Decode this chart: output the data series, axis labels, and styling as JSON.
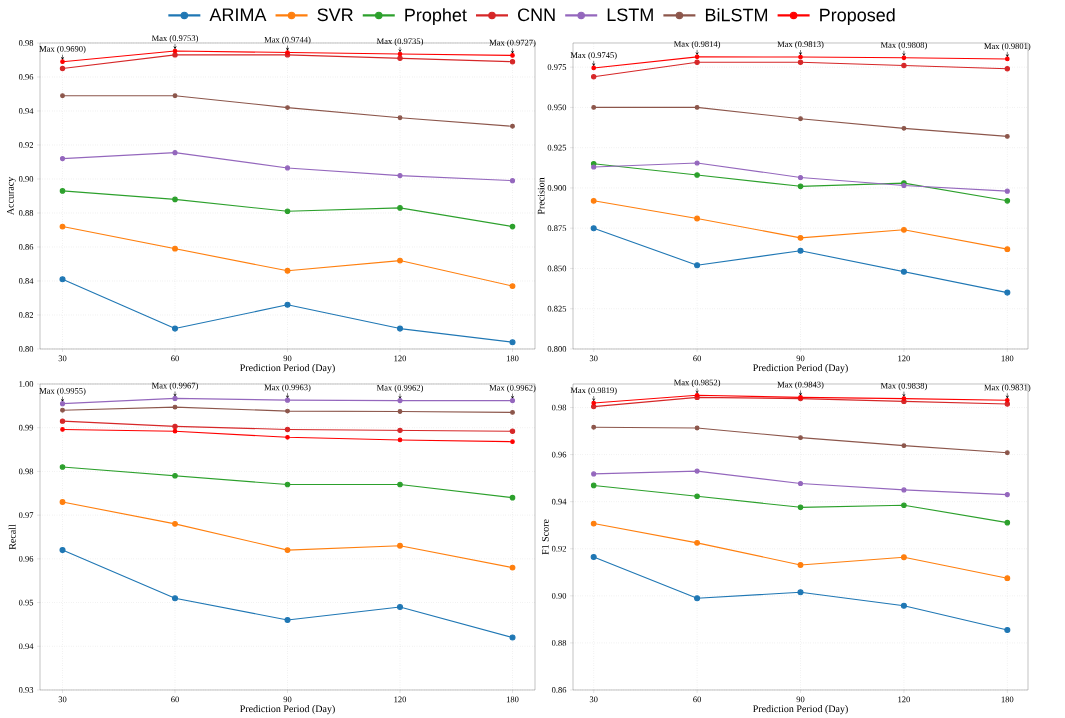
{
  "chart_data": [
    {
      "type": "line",
      "categories": [
        "30",
        "60",
        "90",
        "120",
        "180"
      ],
      "xlabel": "Prediction Period (Day)",
      "ylabel": "Accuracy",
      "ylim": [
        0.8,
        0.98
      ],
      "yticks": [
        {
          "value": 0.8,
          "label": "0.80"
        },
        0.82,
        0.84,
        0.86,
        0.88,
        {
          "value": 0.9,
          "label": "0.90"
        },
        0.92,
        0.94,
        0.96,
        0.98
      ],
      "grid": true,
      "marker": "circle",
      "line_style": "solid",
      "legend": "top",
      "series": [
        {
          "name": "ARIMA",
          "color": "#1f77b4",
          "values": [
            0.841,
            0.812,
            0.826,
            0.812,
            0.804
          ]
        },
        {
          "name": "SVR",
          "color": "#ff7f0e",
          "values": [
            0.872,
            0.859,
            0.846,
            0.852,
            0.837
          ]
        },
        {
          "name": "Prophet",
          "color": "#2ca02c",
          "values": [
            0.893,
            0.888,
            0.881,
            0.883,
            0.872
          ]
        },
        {
          "name": "CNN",
          "color": "#d62728",
          "values": [
            0.965,
            0.973,
            0.973,
            0.971,
            0.969
          ]
        },
        {
          "name": "LSTM",
          "color": "#9467bd",
          "values": [
            0.912,
            0.9155,
            0.9065,
            0.902,
            0.899
          ]
        },
        {
          "name": "BiLSTM",
          "color": "#8c564b",
          "values": [
            0.949,
            0.949,
            0.942,
            0.936,
            0.931
          ]
        },
        {
          "name": "Proposed",
          "color": "#ff0000",
          "values": [
            0.969,
            0.9753,
            0.9744,
            0.9735,
            0.9727
          ]
        }
      ],
      "annotations": [
        {
          "text": "Max (0.9690)",
          "x": "30",
          "y": 0.969
        },
        {
          "text": "Max (0.9753)",
          "x": "60",
          "y": 0.9753
        },
        {
          "text": "Max (0.9744)",
          "x": "90",
          "y": 0.9744
        },
        {
          "text": "Max (0.9735)",
          "x": "120",
          "y": 0.9735
        },
        {
          "text": "Max (0.9727)",
          "x": "180",
          "y": 0.9727
        }
      ]
    },
    {
      "type": "line",
      "categories": [
        "30",
        "60",
        "90",
        "120",
        "180"
      ],
      "xlabel": "Prediction Period (Day)",
      "ylabel": "Precision",
      "ylim": [
        0.8,
        0.99
      ],
      "yticks": [
        {
          "value": 0.8,
          "label": "0.800"
        },
        0.825,
        {
          "value": 0.85,
          "label": "0.850"
        },
        0.875,
        {
          "value": 0.9,
          "label": "0.900"
        },
        0.925,
        {
          "value": 0.95,
          "label": "0.950"
        },
        0.975
      ],
      "grid": true,
      "marker": "circle",
      "line_style": "solid",
      "series": [
        {
          "color": "#1f77b4",
          "values": [
            0.875,
            0.852,
            0.861,
            0.848,
            0.835
          ]
        },
        {
          "color": "#ff7f0e",
          "values": [
            0.892,
            0.881,
            0.869,
            0.874,
            0.862
          ]
        },
        {
          "color": "#2ca02c",
          "values": [
            0.915,
            0.908,
            0.901,
            0.903,
            0.892
          ]
        },
        {
          "color": "#d62728",
          "values": [
            0.969,
            0.978,
            0.978,
            0.976,
            0.974
          ]
        },
        {
          "color": "#9467bd",
          "values": [
            0.913,
            0.9155,
            0.9065,
            0.9015,
            0.898
          ]
        },
        {
          "color": "#8c564b",
          "values": [
            0.95,
            0.95,
            0.943,
            0.937,
            0.932
          ]
        },
        {
          "color": "#ff0000",
          "values": [
            0.9745,
            0.9814,
            0.9813,
            0.9808,
            0.9801
          ]
        }
      ],
      "annotations": [
        {
          "text": "Max (0.9745)",
          "x": "30",
          "y": 0.9745
        },
        {
          "text": "Max (0.9814)",
          "x": "60",
          "y": 0.9814
        },
        {
          "text": "Max (0.9813)",
          "x": "90",
          "y": 0.9813
        },
        {
          "text": "Max (0.9808)",
          "x": "120",
          "y": 0.9808
        },
        {
          "text": "Max (0.9801)",
          "x": "180",
          "y": 0.9801
        }
      ]
    },
    {
      "type": "line",
      "categories": [
        "30",
        "60",
        "90",
        "120",
        "180"
      ],
      "xlabel": "Prediction Period (Day)",
      "ylabel": "Recall",
      "ylim": [
        0.93,
        1.0
      ],
      "yticks": [
        0.93,
        0.94,
        0.95,
        0.96,
        0.97,
        0.98,
        0.99,
        {
          "value": 1.0,
          "label": "1.00"
        }
      ],
      "grid": true,
      "marker": "circle",
      "line_style": "solid",
      "series": [
        {
          "color": "#1f77b4",
          "values": [
            0.962,
            0.951,
            0.946,
            0.949,
            0.942
          ]
        },
        {
          "color": "#ff7f0e",
          "values": [
            0.973,
            0.968,
            0.962,
            0.963,
            0.958
          ]
        },
        {
          "color": "#2ca02c",
          "values": [
            0.981,
            0.979,
            0.977,
            0.977,
            0.974
          ]
        },
        {
          "color": "#d62728",
          "values": [
            0.9915,
            0.9903,
            0.9896,
            0.9894,
            0.9892
          ]
        },
        {
          "color": "#9467bd",
          "values": [
            0.9955,
            0.9967,
            0.9963,
            0.9962,
            0.9962
          ]
        },
        {
          "color": "#8c564b",
          "values": [
            0.994,
            0.9947,
            0.9938,
            0.9937,
            0.9935
          ]
        },
        {
          "color": "#ff0000",
          "values": [
            0.9896,
            0.9892,
            0.9878,
            0.9872,
            0.9868
          ]
        }
      ],
      "annotations": [
        {
          "text": "Max (0.9955)",
          "x": "30",
          "y": 0.9955
        },
        {
          "text": "Max (0.9967)",
          "x": "60",
          "y": 0.9967
        },
        {
          "text": "Max (0.9963)",
          "x": "90",
          "y": 0.9963
        },
        {
          "text": "Max (0.9962)",
          "x": "120",
          "y": 0.9962
        },
        {
          "text": "Max (0.9962)",
          "x": "180",
          "y": 0.9962
        }
      ]
    },
    {
      "type": "line",
      "categories": [
        "30",
        "60",
        "90",
        "120",
        "180"
      ],
      "xlabel": "Prediction Period (Day)",
      "ylabel": "F1 Score",
      "ylim": [
        0.86,
        0.99
      ],
      "yticks": [
        0.86,
        0.88,
        {
          "value": 0.9,
          "label": "0.90"
        },
        0.92,
        0.94,
        0.96,
        0.98
      ],
      "grid": true,
      "marker": "circle",
      "line_style": "solid",
      "series": [
        {
          "color": "#1f77b4",
          "values": [
            0.9165,
            0.899,
            0.9015,
            0.8958,
            0.8855
          ]
        },
        {
          "color": "#ff7f0e",
          "values": [
            0.9307,
            0.9225,
            0.9131,
            0.9164,
            0.9075
          ]
        },
        {
          "color": "#2ca02c",
          "values": [
            0.9469,
            0.9423,
            0.9376,
            0.9385,
            0.9311
          ]
        },
        {
          "color": "#d62728",
          "values": [
            0.9804,
            0.9843,
            0.9838,
            0.9826,
            0.9815
          ]
        },
        {
          "color": "#9467bd",
          "values": [
            0.9518,
            0.953,
            0.9477,
            0.945,
            0.943
          ]
        },
        {
          "color": "#8c564b",
          "values": [
            0.9716,
            0.9713,
            0.9672,
            0.9638,
            0.9608
          ]
        },
        {
          "color": "#ff0000",
          "values": [
            0.9819,
            0.9852,
            0.9843,
            0.9838,
            0.9831
          ]
        }
      ],
      "annotations": [
        {
          "text": "Max (0.9819)",
          "x": "30",
          "y": 0.9819
        },
        {
          "text": "Max (0.9852)",
          "x": "60",
          "y": 0.9852
        },
        {
          "text": "Max (0.9843)",
          "x": "90",
          "y": 0.9843
        },
        {
          "text": "Max (0.9838)",
          "x": "120",
          "y": 0.9838
        },
        {
          "text": "Max (0.9831)",
          "x": "180",
          "y": 0.9831
        }
      ]
    }
  ]
}
